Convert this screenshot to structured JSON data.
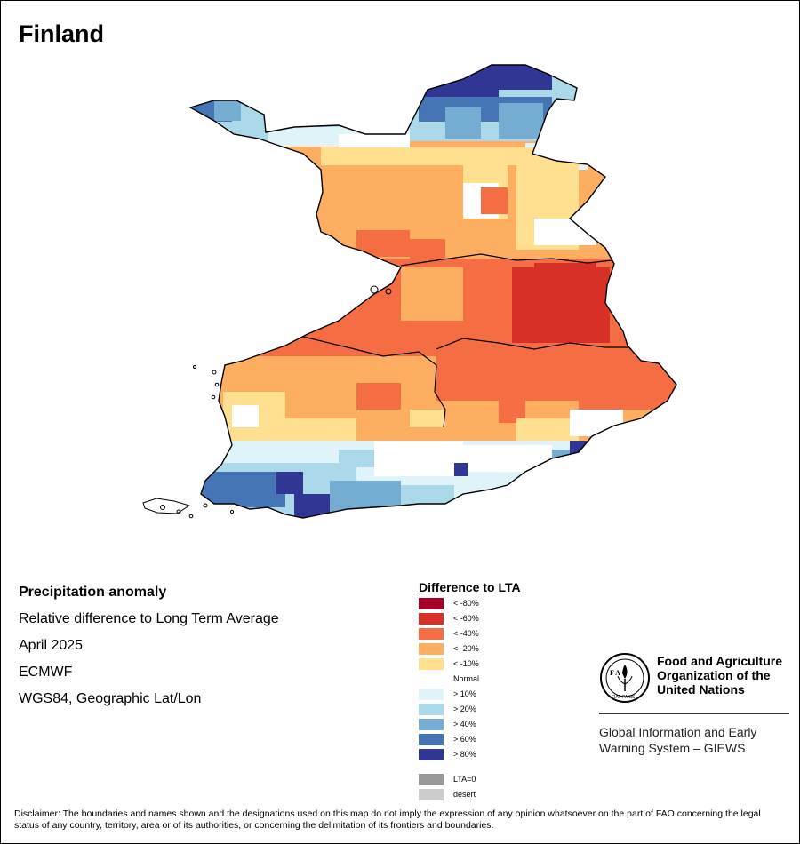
{
  "title": "Finland",
  "info": {
    "heading": "Precipitation anomaly",
    "subtitle": "Relative difference to Long Term Average",
    "period": "April 2025",
    "source": "ECMWF",
    "projection": "WGS84, Geographic Lat/Lon"
  },
  "legend": {
    "title": "Difference to LTA",
    "items": [
      {
        "label": "< -80%",
        "color": "#a50026"
      },
      {
        "label": "< -60%",
        "color": "#d73027"
      },
      {
        "label": "< -40%",
        "color": "#f46d43"
      },
      {
        "label": "< -20%",
        "color": "#fdae61"
      },
      {
        "label": "< -10%",
        "color": "#fee090"
      },
      {
        "label": "Normal",
        "color": "#ffffff"
      },
      {
        "label": "> 10%",
        "color": "#e0f3f8"
      },
      {
        "label": "> 20%",
        "color": "#abd9e9"
      },
      {
        "label": "> 40%",
        "color": "#74add1"
      },
      {
        "label": "> 60%",
        "color": "#4575b4"
      },
      {
        "label": "> 80%",
        "color": "#313695"
      }
    ],
    "extra": [
      {
        "label": "LTA=0",
        "color": "#999999"
      },
      {
        "label": "desert",
        "color": "#cccccc"
      }
    ]
  },
  "logo": {
    "org_line1": "Food and Agriculture",
    "org_line2": "Organization of the",
    "org_line3": "United Nations",
    "fao_letters": "F A O",
    "motto": "FIAT PANIS",
    "system_line1": "Global Information and Early",
    "system_line2": "Warning System – GIEWS"
  },
  "disclaimer": "Disclaimer: The boundaries and names shown and the designations used on this map do not imply the expression of any opinion whatsoever on the part of FAO concerning the legal status of any country, territory, area or of its authorities, or concerning the delimitation of its frontiers and boundaries.",
  "map": {
    "country": "Finland",
    "region_anomalies": [
      {
        "region": "far-north",
        "class": "> 80%",
        "color": "#313695"
      },
      {
        "region": "north",
        "class": "> 20%",
        "color": "#abd9e9"
      },
      {
        "region": "lapland-central",
        "class": "< -20%",
        "color": "#fdae61"
      },
      {
        "region": "east-central",
        "class": "< -60%",
        "color": "#d73027"
      },
      {
        "region": "central",
        "class": "< -40%",
        "color": "#f46d43"
      },
      {
        "region": "southwest-inland",
        "class": "< -20%",
        "color": "#fdae61"
      },
      {
        "region": "south-coast",
        "class": "> 40%",
        "color": "#74add1"
      }
    ]
  }
}
